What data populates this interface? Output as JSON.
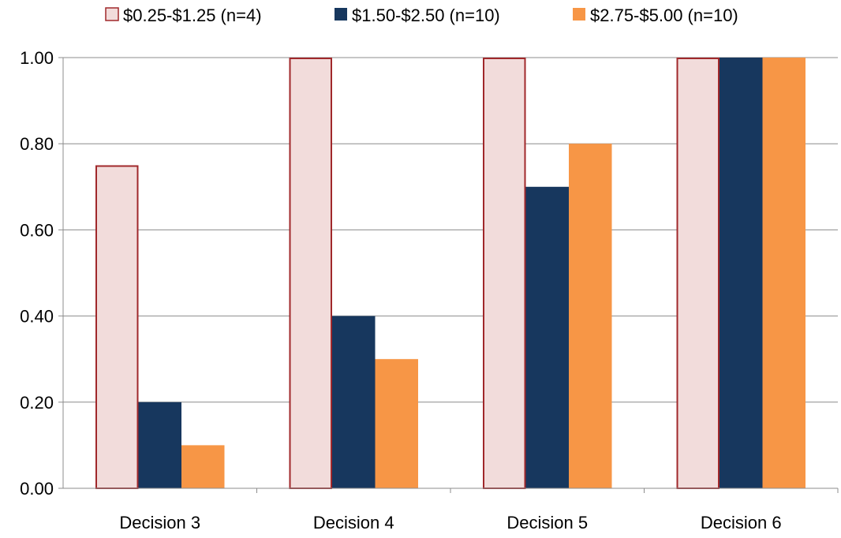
{
  "chart_data": {
    "type": "bar",
    "categories": [
      "Decision 3",
      "Decision 4",
      "Decision 5",
      "Decision 6"
    ],
    "series": [
      {
        "name": "$0.25-$1.25 (n=4)",
        "values": [
          0.75,
          1.0,
          1.0,
          1.0
        ],
        "color": "#F2DCDB",
        "stroke": "#A0282B"
      },
      {
        "name": "$1.50-$2.50 (n=10)",
        "values": [
          0.2,
          0.4,
          0.7,
          1.0
        ],
        "color": "#17375E",
        "stroke": "#17375E"
      },
      {
        "name": "$2.75-$5.00 (n=10)",
        "values": [
          0.1,
          0.3,
          0.8,
          1.0
        ],
        "color": "#F79646",
        "stroke": "#F79646"
      }
    ],
    "ylim": [
      0,
      1.0
    ],
    "yticks": [
      "0.00",
      "0.20",
      "0.40",
      "0.60",
      "0.80",
      "1.00"
    ],
    "grid": true,
    "legend_position": "top",
    "title": "",
    "xlabel": "",
    "ylabel": ""
  }
}
